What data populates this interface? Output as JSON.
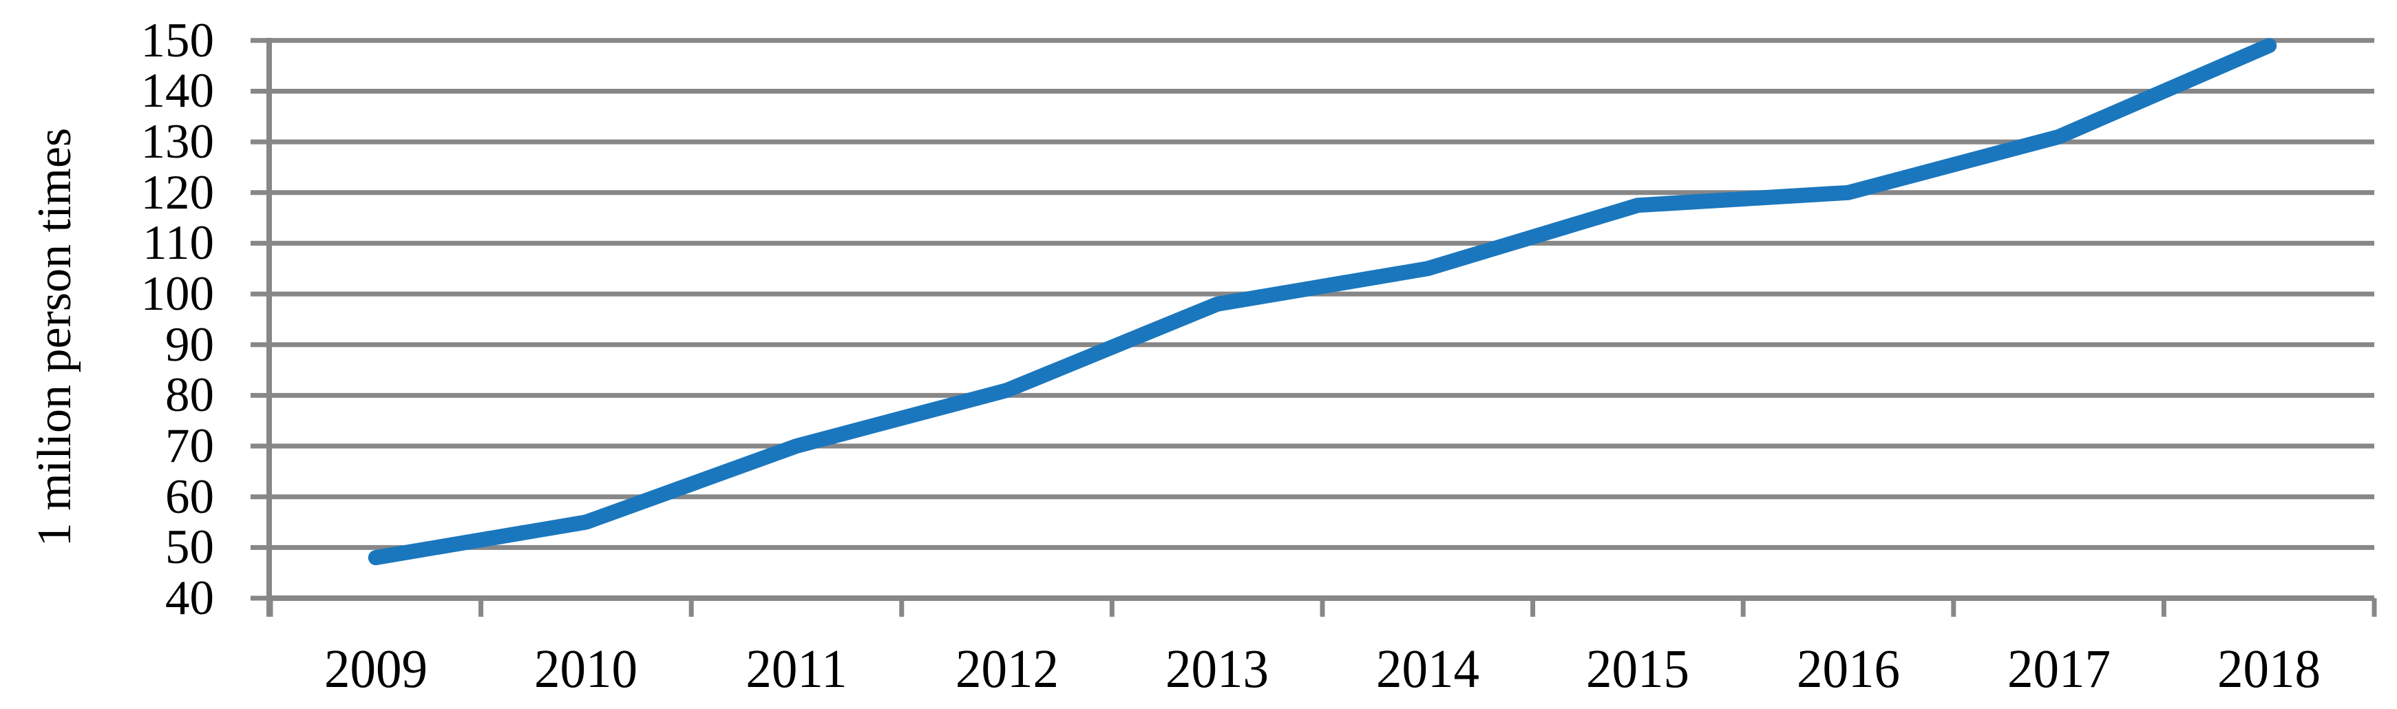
{
  "chart": {
    "background": "#ffffff",
    "text_color": "#000000",
    "grid_color": "#878787",
    "axis_color": "#878787",
    "line_color": "#1b77bd"
  },
  "chart_data": {
    "type": "line",
    "title": "",
    "xlabel": "",
    "ylabel": "1 milion person times",
    "categories": [
      "2009",
      "2010",
      "2011",
      "2012",
      "2013",
      "2014",
      "2015",
      "2016",
      "2017",
      "2018"
    ],
    "values": [
      48,
      55,
      70,
      81,
      98,
      105,
      117.5,
      120,
      131,
      149
    ],
    "ylim": [
      40,
      150
    ],
    "ytick_step": 10,
    "ytick_labels": [
      "40",
      "50",
      "60",
      "70",
      "80",
      "90",
      "100",
      "110",
      "120",
      "130",
      "140",
      "150"
    ],
    "grid": true,
    "legend": "none"
  }
}
